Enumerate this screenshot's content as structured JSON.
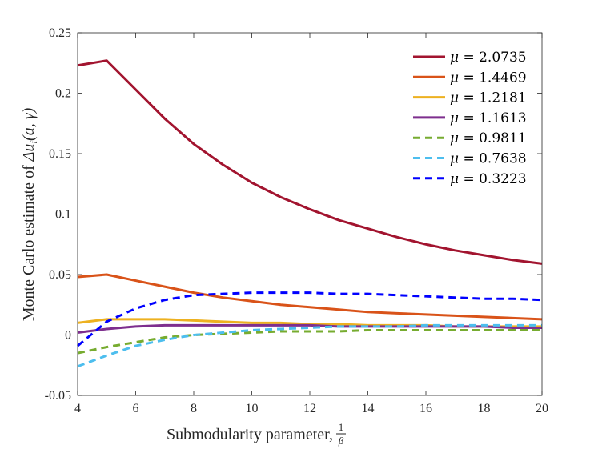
{
  "chart_data": {
    "type": "line",
    "xlabel": "Submodularity parameter,",
    "xlabel_fraction": {
      "numerator": "1",
      "denominator": "β"
    },
    "ylabel_prefix": "Monte Carlo estimate of",
    "ylabel_math": "Δu",
    "ylabel_subscript": "i",
    "ylabel_args": "(a, γ)",
    "xlim": [
      4,
      20
    ],
    "ylim": [
      -0.05,
      0.25
    ],
    "xticks": [
      4,
      6,
      8,
      10,
      12,
      14,
      16,
      18,
      20
    ],
    "xtick_labels": [
      "4",
      "6",
      "8",
      "10",
      "12",
      "14",
      "16",
      "18",
      "20"
    ],
    "yticks": [
      -0.05,
      0,
      0.05,
      0.1,
      0.15,
      0.2,
      0.25
    ],
    "ytick_labels": [
      "-0.05",
      "0",
      "0.05",
      "0.1",
      "0.15",
      "0.2",
      "0.25"
    ],
    "legend_position": "top-right",
    "x": [
      4,
      5,
      6,
      7,
      8,
      9,
      10,
      11,
      12,
      13,
      14,
      15,
      16,
      17,
      18,
      19,
      20
    ],
    "series": [
      {
        "name": "μ = 2.0735",
        "symbol": "μ",
        "value_text": "2.0735",
        "color": "#A2142F",
        "dashed": false,
        "values": [
          0.223,
          0.227,
          0.203,
          0.179,
          0.158,
          0.141,
          0.126,
          0.114,
          0.104,
          0.095,
          0.088,
          0.081,
          0.075,
          0.07,
          0.066,
          0.062,
          0.059
        ]
      },
      {
        "name": "μ = 1.4469",
        "symbol": "μ",
        "value_text": "1.4469",
        "color": "#D95319",
        "dashed": false,
        "values": [
          0.048,
          0.05,
          0.045,
          0.04,
          0.035,
          0.031,
          0.028,
          0.025,
          0.023,
          0.021,
          0.019,
          0.018,
          0.017,
          0.016,
          0.015,
          0.014,
          0.013
        ]
      },
      {
        "name": "μ = 1.2181",
        "symbol": "μ",
        "value_text": "1.2181",
        "color": "#EDB120",
        "dashed": false,
        "values": [
          0.01,
          0.013,
          0.013,
          0.013,
          0.012,
          0.011,
          0.01,
          0.01,
          0.009,
          0.009,
          0.008,
          0.008,
          0.008,
          0.007,
          0.007,
          0.007,
          0.007
        ]
      },
      {
        "name": "μ = 1.1613",
        "symbol": "μ",
        "value_text": "1.1613",
        "color": "#7E2F8E",
        "dashed": false,
        "values": [
          0.002,
          0.005,
          0.007,
          0.008,
          0.008,
          0.008,
          0.008,
          0.008,
          0.008,
          0.007,
          0.007,
          0.007,
          0.007,
          0.007,
          0.007,
          0.006,
          0.006
        ]
      },
      {
        "name": "μ = 0.9811",
        "symbol": "μ",
        "value_text": "0.9811",
        "color": "#77AC30",
        "dashed": true,
        "values": [
          -0.015,
          -0.01,
          -0.006,
          -0.002,
          0.0,
          0.001,
          0.002,
          0.003,
          0.003,
          0.003,
          0.004,
          0.004,
          0.004,
          0.004,
          0.004,
          0.004,
          0.004
        ]
      },
      {
        "name": "μ = 0.7638",
        "symbol": "μ",
        "value_text": "0.7638",
        "color": "#4DBEEE",
        "dashed": true,
        "values": [
          -0.026,
          -0.017,
          -0.009,
          -0.004,
          0.0,
          0.002,
          0.004,
          0.005,
          0.006,
          0.007,
          0.007,
          0.007,
          0.008,
          0.008,
          0.008,
          0.008,
          0.008
        ]
      },
      {
        "name": "μ = 0.3223",
        "symbol": "μ",
        "value_text": "0.3223",
        "color": "#0000FF",
        "dashed": true,
        "values": [
          -0.009,
          0.011,
          0.022,
          0.029,
          0.033,
          0.034,
          0.035,
          0.035,
          0.035,
          0.034,
          0.034,
          0.033,
          0.032,
          0.031,
          0.03,
          0.03,
          0.029
        ]
      }
    ]
  }
}
